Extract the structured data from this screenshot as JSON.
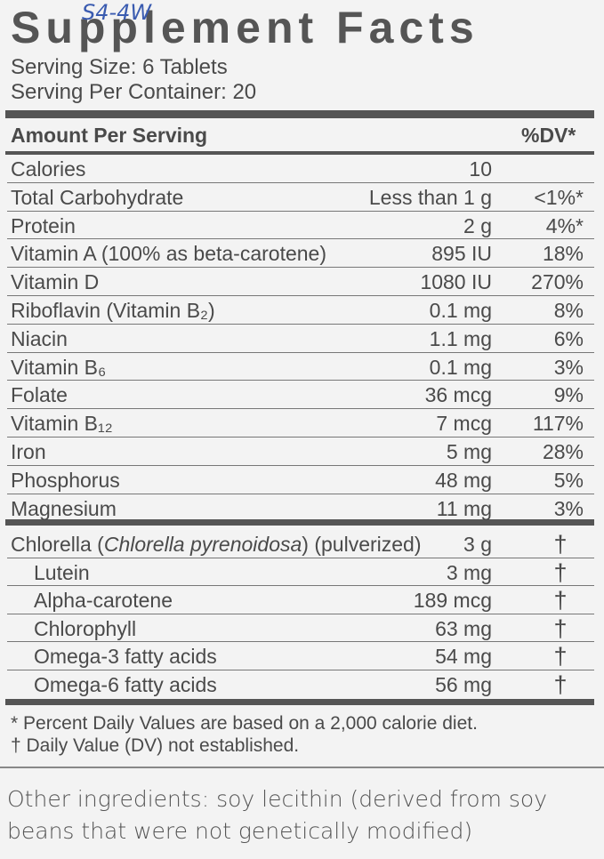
{
  "handwritten_note": "S4-4W",
  "header": {
    "title": "Supplement Facts",
    "serving_size": "Serving Size: 6 Tablets",
    "servings_per_container": "Serving Per Container: 20"
  },
  "table": {
    "columns": [
      "Amount Per Serving",
      "%DV*"
    ],
    "rows": [
      {
        "name": "Calories",
        "amount": "10"
      },
      {
        "name": "Total Carbohydrate",
        "amount": "Less than 1 g",
        "dv": "<1%*"
      },
      {
        "name": "Protein",
        "amount": "2 g",
        "dv": "4%*"
      },
      {
        "name": "Vitamin A (100% as beta-carotene)",
        "amount": "895 IU",
        "dv": "18%"
      },
      {
        "name": "Vitamin D",
        "amount": "1080 IU",
        "dv": "270%"
      },
      {
        "name": "Riboflavin (Vitamin B₂)",
        "amount": "0.1 mg",
        "dv": "8%"
      },
      {
        "name": "Niacin",
        "amount": "1.1 mg",
        "dv": "6%"
      },
      {
        "name": "Vitamin B₆",
        "amount": "0.1 mg",
        "dv": "3%"
      },
      {
        "name": "Folate",
        "amount": "36 mcg",
        "dv": "9%"
      },
      {
        "name": "Vitamin B₁₂",
        "amount": "7 mcg",
        "dv": "117%"
      },
      {
        "name": "Iron",
        "amount": "5 mg",
        "dv": "28%"
      },
      {
        "name": "Phosphorus",
        "amount": "48 mg",
        "dv": "5%"
      },
      {
        "name": "Magnesium",
        "amount": "11 mg",
        "dv": "3%"
      }
    ],
    "blend_rows": [
      {
        "name": [
          "Chlorella (",
          "Chlorella pyrenoidosa",
          ") (pulverized)"
        ],
        "amount": "3 g",
        "dv": "†"
      },
      {
        "name": "Lutein",
        "amount": "3 mg",
        "dv": "†",
        "indent": true
      },
      {
        "name": "Alpha-carotene",
        "amount": "189 mcg",
        "dv": "†",
        "indent": true
      },
      {
        "name": "Chlorophyll",
        "amount": "63 mg",
        "dv": "†",
        "indent": true
      },
      {
        "name": "Omega-3 fatty acids",
        "amount": "54 mg",
        "dv": "†",
        "indent": true
      },
      {
        "name": "Omega-6 fatty acids",
        "amount": "56 mg",
        "dv": "†",
        "indent": true
      }
    ]
  },
  "footnotes": [
    "* Percent Daily Values are based on a 2,000 calorie diet.",
    "† Daily Value (DV) not established."
  ],
  "other_ingredients": [
    "Other ingredients: soy lecithin (derived from soy",
    "beans that were not genetically modified)"
  ]
}
